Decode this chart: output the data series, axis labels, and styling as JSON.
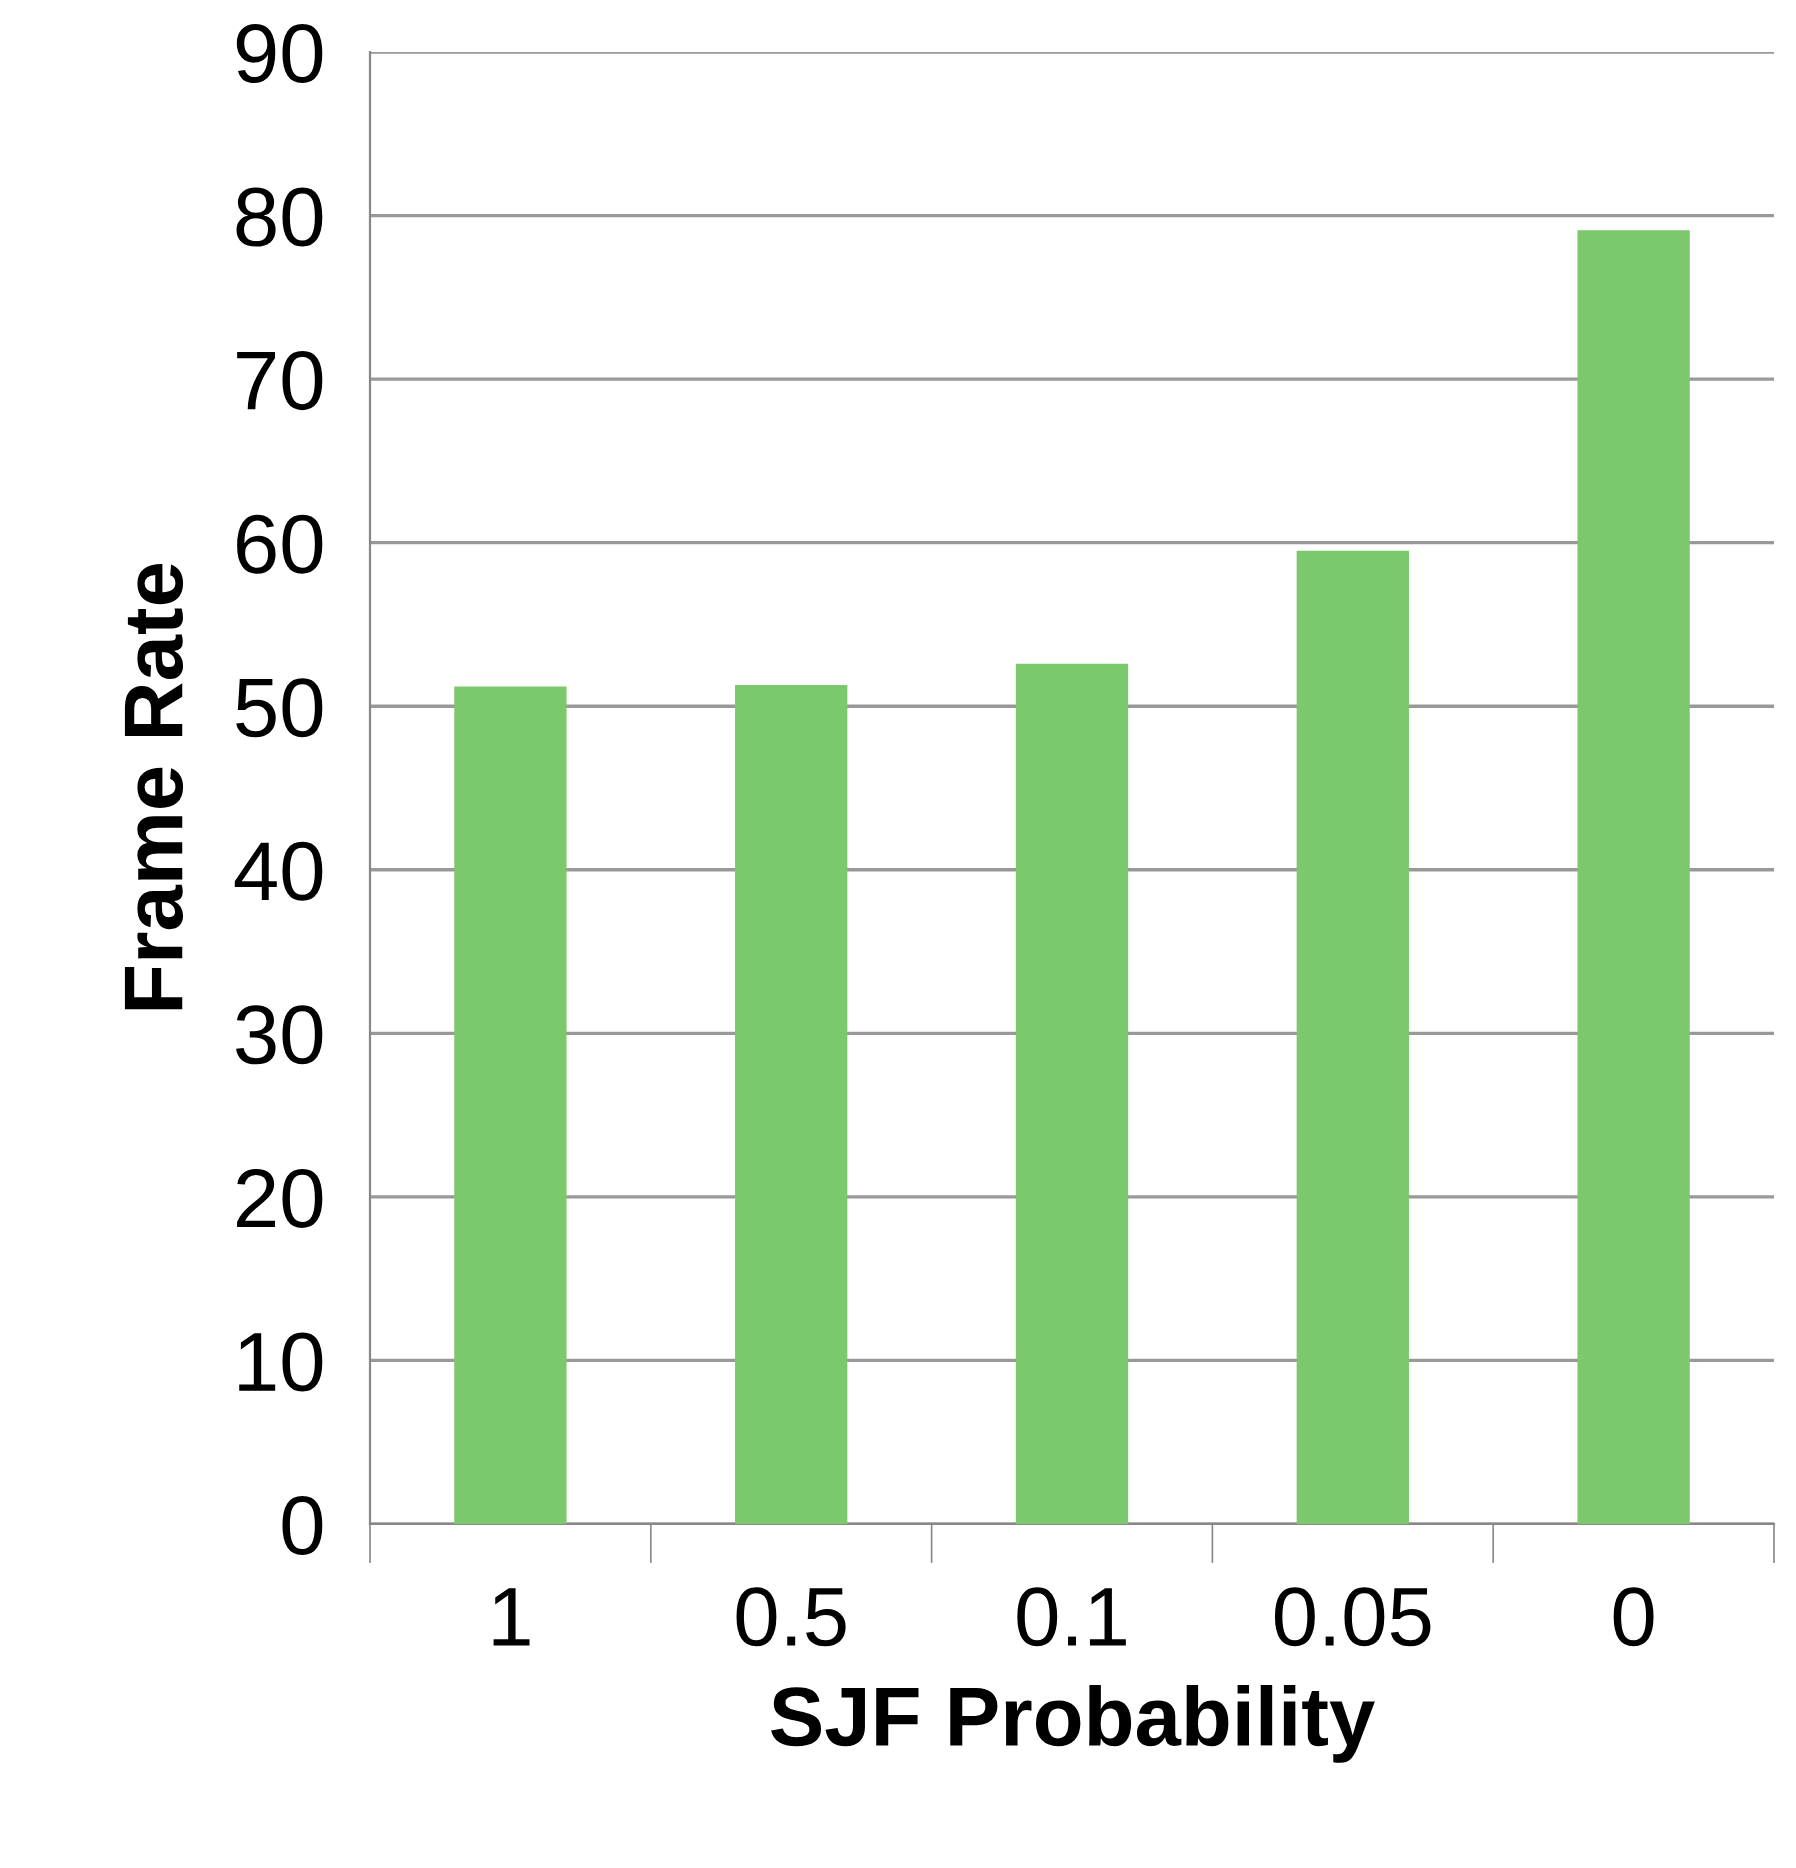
{
  "chart_data": {
    "type": "bar",
    "xlabel": "SJF Probability",
    "ylabel": "Frame Rate",
    "categories": [
      "1",
      "0.5",
      "0.1",
      "0.05",
      "0"
    ],
    "values": [
      51.2,
      51.3,
      52.6,
      59.5,
      79.1
    ],
    "color": "#7cc86c",
    "ylim": [
      0,
      90
    ],
    "yticks": [
      0,
      10,
      20,
      30,
      40,
      50,
      60,
      70,
      80,
      90
    ],
    "grid": "y",
    "legend": false
  }
}
